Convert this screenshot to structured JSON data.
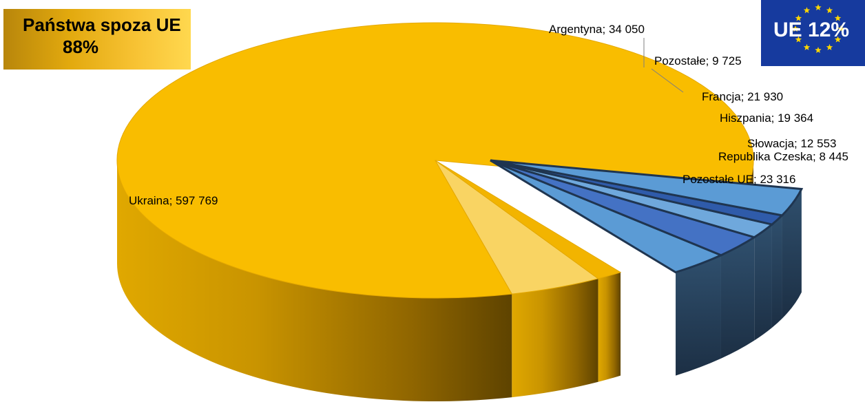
{
  "badges": {
    "non_eu": {
      "line1": "Państwa spoza UE",
      "line2": "88%"
    },
    "eu": {
      "text": "UE 12%"
    }
  },
  "chart_data": {
    "type": "pie",
    "title": "",
    "labels": [
      "Ukraina; 597 769",
      "Argentyna; 34 050",
      "Pozostałe; 9 725",
      "Francja; 21 930",
      "Hiszpania; 19 364",
      "Słowacja; 12 553",
      "Republika Czeska; 8 445",
      "Pozostałe UE; 23 316"
    ],
    "slices": [
      {
        "name": "Ukraina",
        "value": 597769,
        "group": "non-EU",
        "color": "#F9BD00"
      },
      {
        "name": "Argentyna",
        "value": 34050,
        "group": "non-EU",
        "color": "#F9D463"
      },
      {
        "name": "Pozostałe",
        "value": 9725,
        "group": "non-EU",
        "color": "#F2B400"
      },
      {
        "name": "Francja",
        "value": 21930,
        "group": "EU",
        "color": "#5B9BD5"
      },
      {
        "name": "Hiszpania",
        "value": 19364,
        "group": "EU",
        "color": "#4472C4"
      },
      {
        "name": "Słowacja",
        "value": 12553,
        "group": "EU",
        "color": "#6FA8DC"
      },
      {
        "name": "Republika Czeska",
        "value": 8445,
        "group": "EU",
        "color": "#2F5BAA"
      },
      {
        "name": "Pozostałe UE",
        "value": 23316,
        "group": "EU",
        "color": "#5B9BD5"
      }
    ],
    "legend": "none"
  }
}
